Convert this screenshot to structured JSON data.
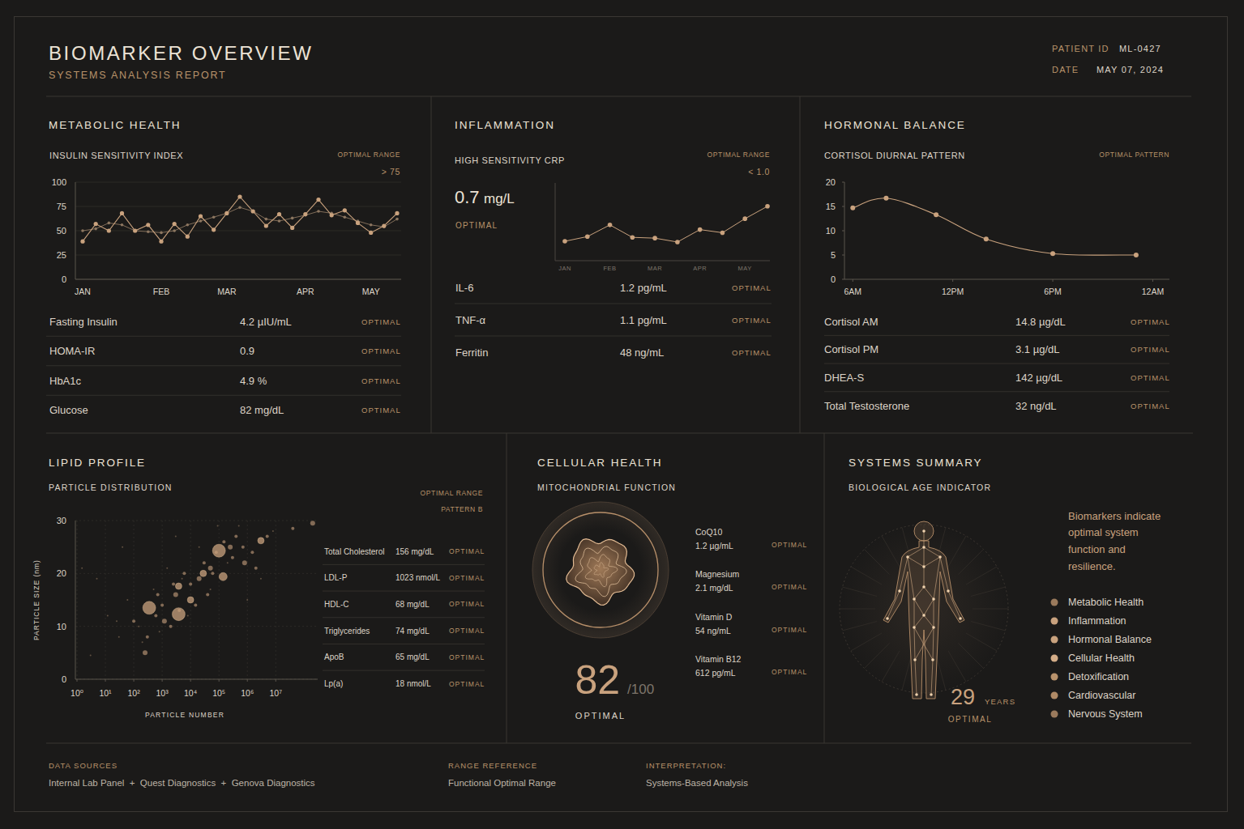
{
  "header": {
    "title": "BIOMARKER OVERVIEW",
    "subtitle": "SYSTEMS ANALYSIS REPORT",
    "patient_id_label": "PATIENT ID",
    "patient_id": "ML-0427",
    "date_label": "DATE",
    "date": "MAY 07, 2024"
  },
  "panels": {
    "metabolic": {
      "title": "METABOLIC HEALTH",
      "range_label": "OPTIMAL RANGE",
      "range_value": "> 75",
      "rows": [
        {
          "name": "Fasting Insulin",
          "value": "4.2 µIU/mL",
          "status": "OPTIMAL"
        },
        {
          "name": "HOMA-IR",
          "value": "0.9",
          "status": "OPTIMAL"
        },
        {
          "name": "HbA1c",
          "value": "4.9 %",
          "status": "OPTIMAL"
        },
        {
          "name": "Glucose",
          "value": "82 mg/dL",
          "status": "OPTIMAL"
        }
      ]
    },
    "inflammation": {
      "title": "INFLAMMATION",
      "range_label": "OPTIMAL RANGE",
      "range_value": "< 1.0",
      "headline_value": "0.7",
      "headline_unit": "mg/L",
      "headline_status": "OPTIMAL",
      "rows": [
        {
          "name": "IL-6",
          "value": "1.2 pg/mL",
          "status": "OPTIMAL"
        },
        {
          "name": "TNF-α",
          "value": "1.1 pg/mL",
          "status": "OPTIMAL"
        },
        {
          "name": "Ferritin",
          "value": "48 ng/mL",
          "status": "OPTIMAL"
        }
      ]
    },
    "hormonal": {
      "title": "HORMONAL BALANCE",
      "range_label": "OPTIMAL PATTERN",
      "rows": [
        {
          "name": "Cortisol AM",
          "value": "14.8 µg/dL",
          "status": "OPTIMAL"
        },
        {
          "name": "Cortisol PM",
          "value": "3.1 µg/dL",
          "status": "OPTIMAL"
        },
        {
          "name": "DHEA-S",
          "value": "142 µg/dL",
          "status": "OPTIMAL"
        },
        {
          "name": "Total Testosterone",
          "value": "32 ng/dL",
          "status": "OPTIMAL"
        }
      ]
    },
    "lipid": {
      "title": "LIPID PROFILE",
      "range_label": "OPTIMAL RANGE",
      "range_value": "PATTERN B",
      "rows": [
        {
          "name": "Total Cholesterol",
          "value": "156 mg/dL",
          "status": "OPTIMAL"
        },
        {
          "name": "LDL-P",
          "value": "1023 nmol/L",
          "status": "OPTIMAL"
        },
        {
          "name": "HDL-C",
          "value": "68 mg/dL",
          "status": "OPTIMAL"
        },
        {
          "name": "Triglycerides",
          "value": "74 mg/dL",
          "status": "OPTIMAL"
        },
        {
          "name": "ApoB",
          "value": "65 mg/dL",
          "status": "OPTIMAL"
        },
        {
          "name": "Lp(a)",
          "value": "18 nmol/L",
          "status": "OPTIMAL"
        }
      ]
    },
    "cellular": {
      "title": "CELLULAR HEALTH",
      "subtitle": "MITOCHONDRIAL FUNCTION",
      "score": 82,
      "score_max": "/100",
      "status": "OPTIMAL",
      "rows": [
        {
          "name": "CoQ10",
          "value": "1.2 µg/mL",
          "status": "OPTIMAL"
        },
        {
          "name": "Magnesium",
          "value": "2.1 mg/dL",
          "status": "OPTIMAL"
        },
        {
          "name": "Vitamin D",
          "value": "54 ng/mL",
          "status": "OPTIMAL"
        },
        {
          "name": "Vitamin B12",
          "value": "612 pg/mL",
          "status": "OPTIMAL"
        }
      ]
    },
    "summary": {
      "title": "SYSTEMS SUMMARY",
      "subtitle": "BIOLOGICAL AGE INDICATOR",
      "message_lines": [
        "Biomarkers indicate",
        "optimal system",
        "function and",
        "resilience."
      ],
      "systems": [
        "Metabolic Health",
        "Inflammation",
        "Hormonal Balance",
        "Cellular Health",
        "Detoxification",
        "Cardiovascular",
        "Nervous System"
      ],
      "age": 29,
      "age_unit": "YEARS",
      "status": "OPTIMAL"
    }
  },
  "chart_data": [
    {
      "type": "line",
      "title": "INSULIN SENSITIVITY INDEX",
      "categories": [
        "JAN",
        null,
        null,
        null,
        null,
        null,
        "FEB",
        null,
        null,
        null,
        null,
        "MAR",
        null,
        null,
        null,
        null,
        null,
        "APR",
        null,
        null,
        null,
        null,
        "MAY",
        null,
        null
      ],
      "series": [
        {
          "color": "#c9a27e",
          "marker": "circle",
          "line_style": "solid",
          "values": [
            39,
            57,
            50,
            68,
            50,
            56,
            39,
            57,
            44,
            65,
            51,
            68,
            85,
            70,
            55,
            67,
            53,
            67,
            82,
            66,
            71,
            58,
            48,
            55,
            68
          ]
        },
        {
          "color": "#8c7660",
          "marker": "circle",
          "line_style": "solid",
          "values": [
            50,
            52,
            58,
            56,
            50,
            49,
            48,
            50,
            56,
            60,
            64,
            68,
            74,
            70,
            62,
            60,
            63,
            66,
            70,
            68,
            64,
            60,
            56,
            54,
            62
          ]
        }
      ],
      "ylim": [
        0,
        100
      ],
      "yticks": [
        0,
        25,
        50,
        75,
        100
      ],
      "grid": true
    },
    {
      "type": "line",
      "title": "HIGH SENSITIVITY CRP",
      "categories": [
        "JAN",
        null,
        "FEB",
        null,
        "MAR",
        null,
        "APR",
        null,
        "MAY",
        null
      ],
      "values": [
        0.25,
        0.31,
        0.46,
        0.3,
        0.29,
        0.24,
        0.4,
        0.36,
        0.54,
        0.7
      ],
      "color": "#c9a27e",
      "marker": "circle",
      "line_style": "solid",
      "ylim": [
        0,
        1.0
      ],
      "tick_labels": "x"
    },
    {
      "type": "line",
      "title": "CORTISOL DIURNAL PATTERN",
      "x": [
        6,
        8,
        11,
        14,
        18,
        23
      ],
      "values": [
        14.7,
        16.7,
        13.3,
        8.3,
        5.3,
        5.0
      ],
      "color": "#c9a27e",
      "marker": "circle",
      "line_style": "smooth",
      "xlim": [
        5.5,
        25
      ],
      "xticks": [
        {
          "value": 6,
          "label": "6AM"
        },
        {
          "value": 12,
          "label": "12PM"
        },
        {
          "value": 18,
          "label": "6PM"
        },
        {
          "value": 24,
          "label": "12AM"
        }
      ],
      "ylim": [
        0,
        20
      ],
      "yticks": [
        0,
        5,
        10,
        15,
        20
      ],
      "grid": false
    },
    {
      "type": "scatter",
      "title": "PARTICLE DISTRIBUTION",
      "x_label": "PARTICLE NUMBER",
      "y_label": "PARTICLE SIZE (nm)",
      "x": [
        3,
        12,
        5,
        30,
        60,
        25,
        150,
        200,
        500,
        800,
        1500,
        3000,
        5000,
        8000,
        20000,
        50000,
        90000,
        200000,
        500000,
        1000000,
        3000000,
        8000000,
        1.5,
        40,
        100,
        300,
        600,
        1000,
        2000,
        4000,
        6000,
        10000,
        15000,
        30000,
        40000,
        60000,
        80000,
        150000,
        300000,
        400000,
        700000,
        1500000,
        2000000,
        5000000,
        40000000,
        700,
        2500,
        250,
        1200,
        3000,
        20000,
        50000,
        250000,
        800000,
        350,
        3800,
        100000,
        140000,
        10000,
        3800,
        28000,
        3000000,
        200000000
      ],
      "values": [
        4.5,
        12,
        19,
        8,
        15,
        11,
        10,
        7,
        17,
        9,
        21,
        27,
        19,
        12,
        25,
        17,
        29,
        22,
        29,
        15,
        19,
        28,
        21,
        25,
        11,
        8,
        12,
        14,
        10,
        13,
        20,
        18,
        14,
        22,
        16,
        20,
        24,
        26,
        23,
        27,
        25,
        24,
        21,
        27,
        28.5,
        16,
        18,
        5,
        11,
        16,
        19,
        21,
        25,
        22,
        13.5,
        12.3,
        24.3,
        19.4,
        15,
        17.6,
        20,
        26.2,
        29.5
      ],
      "sizes": [
        1,
        1,
        1,
        1,
        1,
        1,
        1,
        1,
        1,
        1,
        1,
        1,
        1,
        1,
        1,
        1,
        1,
        1,
        1,
        1,
        1,
        1,
        1,
        1,
        2,
        2,
        2,
        2,
        2,
        2,
        2,
        2,
        2,
        2,
        2,
        2,
        2,
        2,
        2,
        2,
        2,
        2,
        2,
        2,
        2,
        2,
        2,
        3,
        3,
        3,
        3,
        3,
        3,
        3,
        8,
        8,
        8,
        5,
        4,
        4,
        4,
        4,
        3
      ],
      "color": "#c9a27e",
      "marker": "circle",
      "log": "x",
      "xlim": [
        1,
        300000000
      ],
      "xticks": [
        {
          "value": 1,
          "label": "10⁰"
        },
        {
          "value": 10,
          "label": "10¹"
        },
        {
          "value": 100,
          "label": "10²"
        },
        {
          "value": 1000,
          "label": "10³"
        },
        {
          "value": 10000,
          "label": "10⁴"
        },
        {
          "value": 100000,
          "label": "10⁵"
        },
        {
          "value": 1000000,
          "label": "10⁶"
        },
        {
          "value": 10000000,
          "label": "10⁷"
        }
      ],
      "ylim": [
        0,
        30
      ],
      "yticks": [
        0,
        10,
        20,
        30
      ],
      "grid": true
    }
  ],
  "footer": {
    "data_sources_label": "DATA SOURCES",
    "data_sources": "Internal Lab Panel  +  Quest Diagnostics  +  Genova Diagnostics",
    "range_reference_label": "RANGE REFERENCE",
    "range_reference": "Functional Optimal Range",
    "interpretation_label": "INTERPRETATION:",
    "interpretation": "Systems-Based Analysis"
  }
}
